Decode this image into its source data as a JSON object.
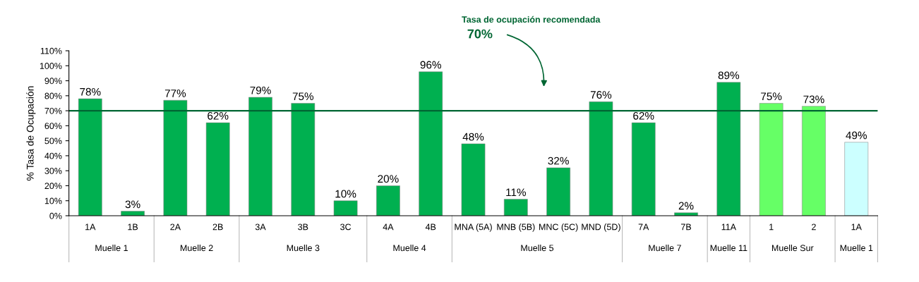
{
  "chart_data": {
    "type": "bar",
    "categories": [
      "1A",
      "1B",
      "2A",
      "2B",
      "3A",
      "3B",
      "3C",
      "4A",
      "4B",
      "MNA (5A)",
      "MNB (5B)",
      "MNC (5C)",
      "MND (5D)",
      "7A",
      "7B",
      "11A",
      "1",
      "2",
      "1A"
    ],
    "values": [
      78,
      3,
      77,
      62,
      79,
      75,
      10,
      20,
      96,
      48,
      11,
      32,
      76,
      62,
      2,
      89,
      75,
      73,
      49
    ],
    "colors": [
      "#00b050",
      "#00b050",
      "#00b050",
      "#00b050",
      "#00b050",
      "#00b050",
      "#00b050",
      "#00b050",
      "#00b050",
      "#00b050",
      "#00b050",
      "#00b050",
      "#00b050",
      "#00b050",
      "#00b050",
      "#00b050",
      "#66ff66",
      "#66ff66",
      "#ccffff"
    ],
    "value_labels": [
      "78%",
      "3%",
      "77%",
      "62%",
      "79%",
      "75%",
      "10%",
      "20%",
      "96%",
      "48%",
      "11%",
      "32%",
      "76%",
      "62%",
      "2%",
      "89%",
      "75%",
      "73%",
      "49%"
    ],
    "ylabel": "% Tasa de Ocupación",
    "ylim": [
      0,
      110
    ],
    "yticks": [
      {
        "value": 0,
        "label": "0%"
      },
      {
        "value": 10,
        "label": "10%"
      },
      {
        "value": 20,
        "label": "20%"
      },
      {
        "value": 30,
        "label": "30%"
      },
      {
        "value": 40,
        "label": "40%"
      },
      {
        "value": 50,
        "label": "50%"
      },
      {
        "value": 60,
        "label": "60%"
      },
      {
        "value": 70,
        "label": "70%"
      },
      {
        "value": 80,
        "label": "80%"
      },
      {
        "value": 90,
        "label": "90%"
      },
      {
        "value": 100,
        "label": "100%"
      },
      {
        "value": 110,
        "label": "110%"
      }
    ],
    "ref_lines": [
      {
        "axis": "y",
        "value": 70,
        "label": "Tasa de ocupación recomendada\n70%",
        "color": "#006633",
        "line_style": "solid"
      }
    ],
    "annotations": [
      "Muelle 1",
      "Muelle 2",
      "Muelle 3",
      "Muelle 4",
      "Muelle 5",
      "Muelle 7",
      "Muelle 11",
      "Muelle Sur",
      "Muelle 1"
    ],
    "grid": false,
    "legend": false
  }
}
